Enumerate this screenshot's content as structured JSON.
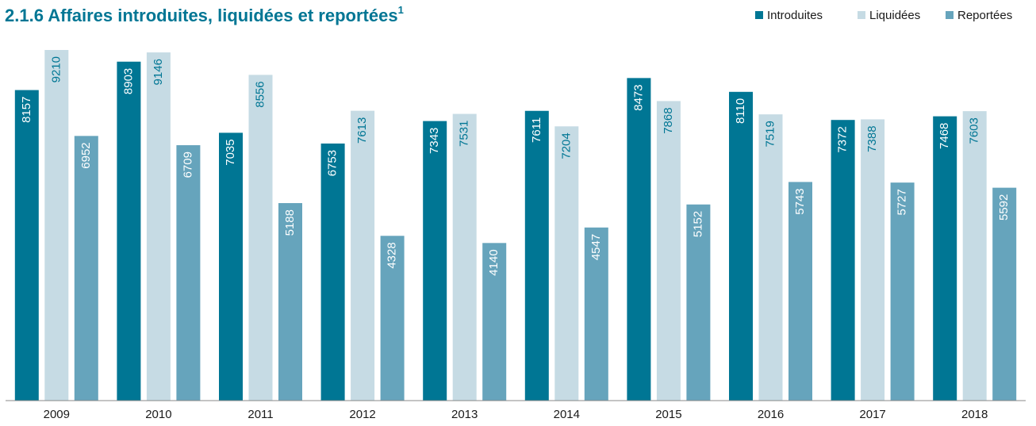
{
  "chart_data": {
    "type": "bar",
    "title": "2.1.6  Affaires introduites, liquidées et reportées",
    "title_superscript": "1",
    "categories": [
      "2009",
      "2010",
      "2011",
      "2012",
      "2013",
      "2014",
      "2015",
      "2016",
      "2017",
      "2018"
    ],
    "series": [
      {
        "name": "Introduites",
        "color": "#007694",
        "label_color": "#ffffff",
        "values": [
          8157,
          8903,
          7035,
          6753,
          7343,
          7611,
          8473,
          8110,
          7372,
          7468
        ]
      },
      {
        "name": "Liquidées",
        "color": "#c6dbe4",
        "label_color": "#007694",
        "values": [
          9210,
          9146,
          8556,
          7613,
          7531,
          7204,
          7868,
          7519,
          7388,
          7603
        ]
      },
      {
        "name": "Reportées",
        "color": "#66a4bc",
        "label_color": "#ffffff",
        "values": [
          6952,
          6709,
          5188,
          4328,
          4140,
          4547,
          5152,
          5743,
          5727,
          5592
        ]
      }
    ],
    "legend": "top-right"
  }
}
